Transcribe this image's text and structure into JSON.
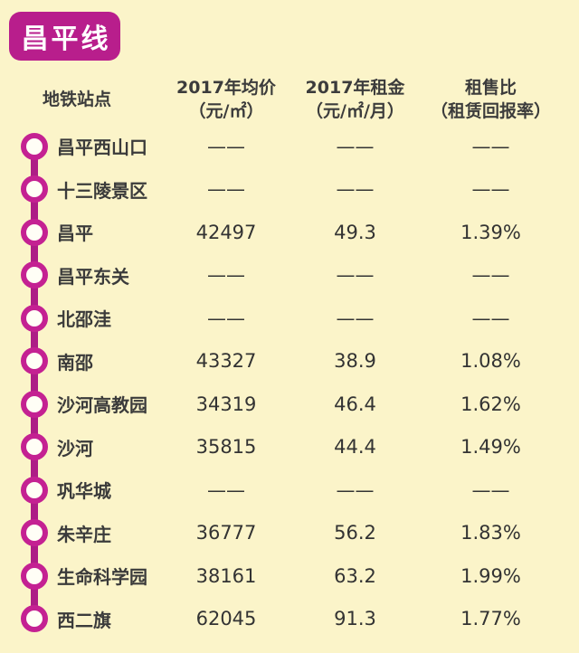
{
  "badge": {
    "label": "昌平线"
  },
  "header": {
    "station": "地铁站点",
    "price_line1": "2017年均价",
    "price_line2": "（元/㎡）",
    "rent_line1": "2017年租金",
    "rent_line2": "（元/㎡/月）",
    "ratio_line1": "租售比",
    "ratio_line2": "（租赁回报率）"
  },
  "colors": {
    "background": "#fbf4c9",
    "badge_magenta": "#b81e8c",
    "route_line": "#ad1d86",
    "station_ring": "#c42192",
    "text": "#3b3b3b"
  },
  "chart_data": {
    "type": "table",
    "title": "昌平线",
    "columns": [
      "地铁站点",
      "2017年均价（元/㎡）",
      "2017年租金（元/㎡/月）",
      "租售比（租赁回报率）"
    ],
    "missing_marker": "——",
    "rows": [
      {
        "station": "昌平西山口",
        "price": "——",
        "rent": "——",
        "ratio": "——"
      },
      {
        "station": "十三陵景区",
        "price": "——",
        "rent": "——",
        "ratio": "——"
      },
      {
        "station": "昌平",
        "price": "42497",
        "rent": "49.3",
        "ratio": "1.39%"
      },
      {
        "station": "昌平东关",
        "price": "——",
        "rent": "——",
        "ratio": "——"
      },
      {
        "station": "北邵洼",
        "price": "——",
        "rent": "——",
        "ratio": "——"
      },
      {
        "station": "南邵",
        "price": "43327",
        "rent": "38.9",
        "ratio": "1.08%"
      },
      {
        "station": "沙河高教园",
        "price": "34319",
        "rent": "46.4",
        "ratio": "1.62%"
      },
      {
        "station": "沙河",
        "price": "35815",
        "rent": "44.4",
        "ratio": "1.49%"
      },
      {
        "station": "巩华城",
        "price": "——",
        "rent": "——",
        "ratio": "——"
      },
      {
        "station": "朱辛庄",
        "price": "36777",
        "rent": "56.2",
        "ratio": "1.83%"
      },
      {
        "station": "生命科学园",
        "price": "38161",
        "rent": "63.2",
        "ratio": "1.99%"
      },
      {
        "station": "西二旗",
        "price": "62045",
        "rent": "91.3",
        "ratio": "1.77%"
      }
    ]
  }
}
